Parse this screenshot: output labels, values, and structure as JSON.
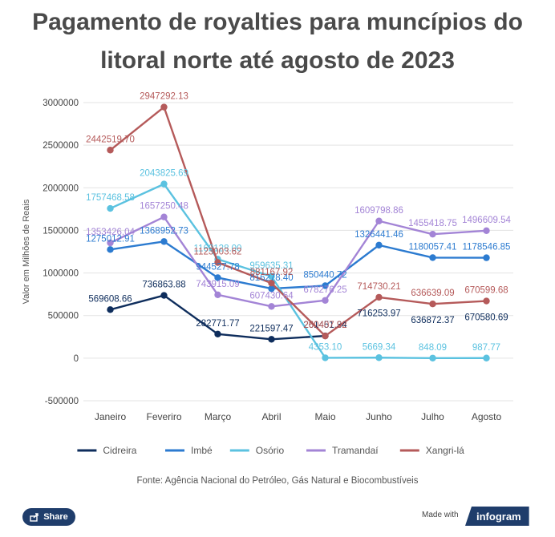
{
  "title": "Pagamento de royalties para muncípios do litoral norte até agosto de 2023",
  "source": "Fonte: Agência Nacional do Petróleo, Gás Natural e Biocombustíveis",
  "share_label": "Share",
  "made_with": "Made with",
  "brand": "infogram",
  "chart_data": {
    "type": "line",
    "title": "Pagamento de royalties para muncípios do litoral norte até agosto de 2023",
    "ylabel": "Valor em Milhões de Reais",
    "xlabel": "",
    "ylim": [
      -500000,
      3000000
    ],
    "yticks": [
      {
        "value": 3000000,
        "label": "3000000"
      },
      {
        "value": 2500000,
        "label": "2500000"
      },
      {
        "value": 2000000,
        "label": "2000000"
      },
      {
        "value": 1500000,
        "label": "1500000"
      },
      {
        "value": 1000000,
        "label": "1000000"
      },
      {
        "value": 500000,
        "label": "500000"
      },
      {
        "value": 0,
        "label": "0"
      },
      {
        "value": -500000,
        "label": "-500000"
      }
    ],
    "grid": true,
    "legend": "bottom",
    "categories": [
      "Janeiro",
      "Feveriro",
      "Março",
      "Abril",
      "Maio",
      "Junho",
      "Julho",
      "Agosto"
    ],
    "series": [
      {
        "name": "Cidreira",
        "color": "#0e2d5c",
        "values": [
          569608.66,
          736863.88,
          282771.77,
          221597.47,
          261451.34,
          null,
          null,
          null
        ],
        "labels": [
          "569608.66",
          "736863.88",
          "282771.77",
          "221597.47",
          "261451.34",
          "",
          "",
          ""
        ]
      },
      {
        "name": "Imbé",
        "color": "#2c7bd0",
        "values": [
          1275012.91,
          1368952.73,
          944527.78,
          816278.4,
          850440.72,
          1326441.46,
          1180057.41,
          1178546.85
        ],
        "labels": [
          "1275012.91",
          "1368952.73",
          "944527.78",
          "816278.40",
          "850440.72",
          "1326441.46",
          "1180057.41",
          "1178546.85"
        ]
      },
      {
        "name": "Osório",
        "color": "#5bc2e0",
        "values": [
          1757468.58,
          2043825.69,
          1162128.0,
          959635.31,
          4353.1,
          5669.34,
          848.09,
          987.77
        ],
        "labels": [
          "1757468.58",
          "2043825.69",
          "1162128.00",
          "959635.31",
          "4353.10",
          "5669.34",
          "848.09",
          "987.77"
        ]
      },
      {
        "name": "Tramandaí",
        "color": "#a384d6",
        "values": [
          1353426.04,
          1657250.48,
          743915.09,
          607430.64,
          678276.25,
          1609798.86,
          1455418.75,
          1496609.54
        ],
        "labels": [
          "1353426.04",
          "1657250.48",
          "743915.09",
          "607430.64",
          "678276.25",
          "1609798.86",
          "1455418.75",
          "1496609.54"
        ]
      },
      {
        "name": "Xangri-lá",
        "color": "#b55a5a",
        "values": [
          2442519.7,
          2947292.13,
          1123003.62,
          881167.92,
          260407.92,
          714730.21,
          636639.09,
          670599.68
        ],
        "labels": [
          "2442519.70",
          "2947292.13",
          "1123003.62",
          "881167.92",
          "260407.92",
          "714730.21",
          "636639.09",
          "670599.68"
        ]
      }
    ],
    "extra_labels": [
      {
        "text": "716253.97",
        "category": "Junho",
        "value": 716253.97,
        "color": "#0e2d5c"
      },
      {
        "text": "636872.37",
        "category": "Julho",
        "value": 636872.37,
        "color": "#0e2d5c"
      },
      {
        "text": "670580.69",
        "category": "Agosto",
        "value": 670580.69,
        "color": "#0e2d5c"
      }
    ]
  }
}
